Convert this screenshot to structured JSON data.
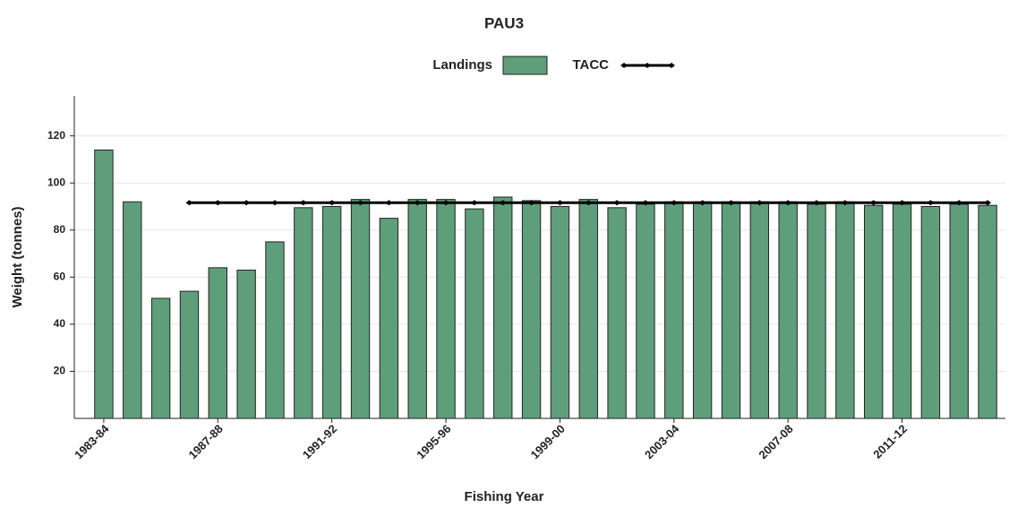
{
  "chart_data": {
    "type": "bar_line",
    "title": "PAU3",
    "x_label": "Fishing Year",
    "y_label": "Weight (tonnes)",
    "categories": [
      "1983-84",
      null,
      null,
      null,
      "1987-88",
      null,
      null,
      null,
      "1991-92",
      null,
      null,
      null,
      "1995-96",
      null,
      null,
      null,
      "1999-00",
      null,
      null,
      null,
      "2003-04",
      null,
      null,
      null,
      "2007-08",
      null,
      null,
      null,
      "2011-12",
      null,
      null,
      null
    ],
    "series": [
      {
        "name": "Landings",
        "kind": "bar",
        "color": "#5f9e7a",
        "values": [
          114,
          92,
          51,
          54,
          64,
          63,
          75,
          89.5,
          90,
          93,
          85,
          93,
          93,
          89,
          94,
          92.5,
          90,
          93,
          89.5,
          91,
          92,
          92,
          92,
          92,
          92,
          91,
          92,
          90.5,
          91,
          90,
          91,
          90.5
        ]
      },
      {
        "name": "TACC",
        "kind": "line",
        "color": "#000000",
        "values": [
          null,
          null,
          null,
          91.62,
          91.62,
          91.62,
          91.62,
          91.62,
          91.62,
          91.62,
          91.62,
          91.62,
          91.62,
          91.62,
          91.62,
          91.62,
          91.62,
          91.62,
          91.62,
          91.62,
          91.62,
          91.62,
          91.62,
          91.62,
          91.62,
          91.62,
          91.62,
          91.62,
          91.62,
          91.62,
          91.62,
          91.62
        ]
      }
    ],
    "ylim": [
      0,
      137
    ],
    "yticks": [
      20,
      40,
      60,
      80,
      100,
      120
    ],
    "grid": true
  }
}
